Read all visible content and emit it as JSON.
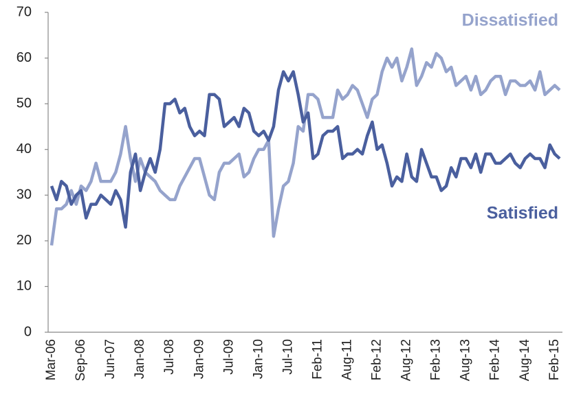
{
  "chart_data": {
    "type": "line",
    "categories": [
      "Mar-06",
      null,
      null,
      null,
      null,
      null,
      "Sep-06",
      null,
      null,
      null,
      null,
      null,
      "Jun-07",
      null,
      null,
      null,
      null,
      null,
      "Jan-08",
      null,
      null,
      null,
      null,
      null,
      "Jul-08",
      null,
      null,
      null,
      null,
      null,
      "Jan-09",
      null,
      null,
      null,
      null,
      null,
      "Jul-09",
      null,
      null,
      null,
      null,
      null,
      "Jan-10",
      null,
      null,
      null,
      null,
      null,
      "Jul-10",
      null,
      null,
      null,
      null,
      null,
      "Feb-11",
      null,
      null,
      null,
      null,
      null,
      "Aug-11",
      null,
      null,
      null,
      null,
      null,
      "Feb-12",
      null,
      null,
      null,
      null,
      null,
      "Aug-12",
      null,
      null,
      null,
      null,
      null,
      "Feb-13",
      null,
      null,
      null,
      null,
      null,
      "Aug-13",
      null,
      null,
      null,
      null,
      null,
      "Feb-14",
      null,
      null,
      null,
      null,
      null,
      "Aug-14",
      null,
      null,
      null,
      null,
      null,
      "Feb-15",
      null
    ],
    "series": [
      {
        "name": "Dissatisfied",
        "color": "#95a3cc",
        "values": [
          19,
          27,
          27,
          28,
          31,
          28,
          32,
          31,
          33,
          37,
          33,
          33,
          33,
          35,
          39,
          45,
          38,
          33,
          38,
          35,
          34,
          33,
          31,
          30,
          29,
          29,
          32,
          34,
          36,
          38,
          38,
          34,
          30,
          29,
          35,
          37,
          37,
          38,
          39,
          34,
          35,
          38,
          40,
          40,
          42,
          21,
          27,
          32,
          33,
          37,
          45,
          44,
          52,
          52,
          51,
          47,
          47,
          47,
          53,
          51,
          52,
          54,
          53,
          50,
          47,
          51,
          52,
          57,
          60,
          58,
          60,
          55,
          58,
          62,
          54,
          56,
          59,
          58,
          61,
          60,
          57,
          58,
          54,
          55,
          56,
          53,
          56,
          52,
          53,
          55,
          56,
          56,
          52,
          55,
          55,
          54,
          54,
          55,
          53,
          57,
          52,
          53,
          54,
          53
        ]
      },
      {
        "name": "Satisfied",
        "color": "#4a5f9e",
        "values": [
          32,
          29,
          33,
          32,
          28,
          30,
          31,
          25,
          28,
          28,
          30,
          29,
          28,
          31,
          29,
          23,
          35,
          39,
          31,
          35,
          38,
          35,
          40,
          50,
          50,
          51,
          48,
          49,
          45,
          43,
          44,
          43,
          52,
          52,
          51,
          45,
          46,
          47,
          45,
          49,
          48,
          44,
          43,
          44,
          42,
          45,
          53,
          57,
          55,
          57,
          52,
          46,
          48,
          38,
          39,
          43,
          44,
          44,
          45,
          38,
          39,
          39,
          40,
          39,
          43,
          46,
          40,
          41,
          37,
          32,
          34,
          33,
          39,
          34,
          33,
          40,
          37,
          34,
          34,
          31,
          32,
          36,
          34,
          38,
          38,
          36,
          39,
          35,
          39,
          39,
          37,
          37,
          38,
          39,
          37,
          36,
          38,
          39,
          38,
          38,
          36,
          41,
          39,
          38
        ]
      }
    ],
    "ylim": [
      0,
      70
    ],
    "yticks": [
      0,
      10,
      20,
      30,
      40,
      50,
      60,
      70
    ]
  }
}
